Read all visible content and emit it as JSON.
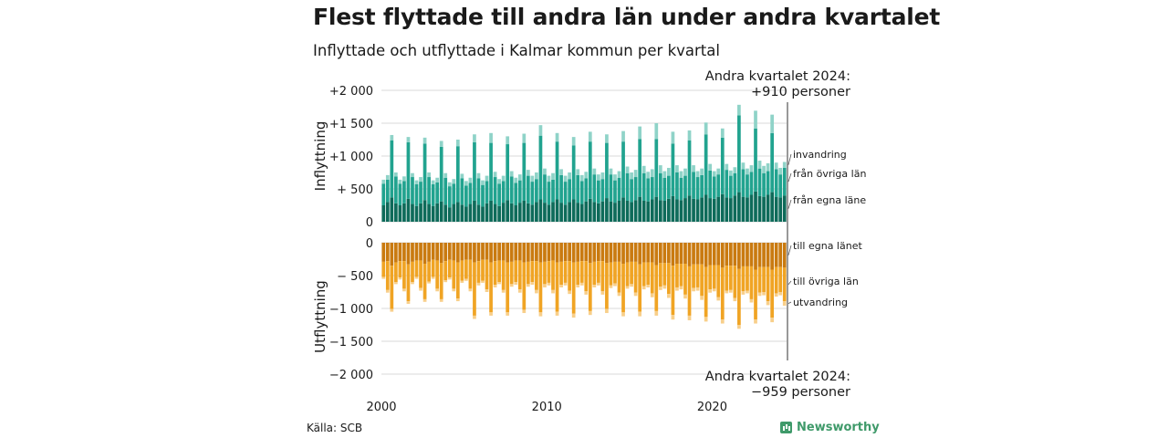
{
  "title": "Flest flyttade till andra län under andra kvartalet",
  "subtitle": "Inflyttade och utflyttade i Kalmar kommun per kvartal",
  "source": "Källa: SCB",
  "brand": "Newsworthy",
  "brand_icon": "bar-chart-icon",
  "chart_data": {
    "type": "bar",
    "stacked": true,
    "x_tick_labels": [
      "2000",
      "2010",
      "2020"
    ],
    "period_start": "2000-Q1",
    "period_end": "2024-Q2",
    "top_panel": {
      "ylabel": "Inflyttning",
      "ylim": [
        0,
        2000
      ],
      "y_ticks": [
        0,
        500,
        1000,
        1500,
        2000
      ],
      "y_tick_labels": [
        "0",
        "+  500",
        "+1 000",
        "+1 500",
        "+2 000"
      ],
      "annotation": [
        "Andra kvartalet 2024:",
        "+910 personer"
      ],
      "components": [
        {
          "name": "från egna läne",
          "color": "#0e6b5a"
        },
        {
          "name": "från övriga län",
          "color": "#21a38f"
        },
        {
          "name": "invandring",
          "color": "#8fd3c8"
        }
      ]
    },
    "bottom_panel": {
      "ylabel": "Utflyttning",
      "ylim": [
        -2000,
        0
      ],
      "y_ticks": [
        0,
        -500,
        -1000,
        -1500,
        -2000
      ],
      "y_tick_labels": [
        "0",
        "−  500",
        "−1 000",
        "−1 500",
        "−2 000"
      ],
      "annotation": [
        "Andra kvartalet 2024:",
        "−959 personer"
      ],
      "components": [
        {
          "name": "till egna länet",
          "color": "#c97a10"
        },
        {
          "name": "till övriga län",
          "color": "#f0a424"
        },
        {
          "name": "utvandring",
          "color": "#f8cf8a"
        }
      ]
    },
    "quarters": [
      {
        "q": "2000-Q1",
        "in": [
          250,
          330,
          60
        ],
        "out": [
          290,
          230,
          30
        ]
      },
      {
        "q": "2000-Q2",
        "in": [
          300,
          340,
          70
        ],
        "out": [
          280,
          440,
          40
        ]
      },
      {
        "q": "2000-Q3",
        "in": [
          370,
          870,
          80
        ],
        "out": [
          350,
          660,
          40
        ]
      },
      {
        "q": "2000-Q4",
        "in": [
          280,
          410,
          60
        ],
        "out": [
          300,
          300,
          30
        ]
      },
      {
        "q": "2001-Q1",
        "in": [
          250,
          330,
          60
        ],
        "out": [
          280,
          250,
          30
        ]
      },
      {
        "q": "2001-Q2",
        "in": [
          280,
          340,
          70
        ],
        "out": [
          280,
          420,
          40
        ]
      },
      {
        "q": "2001-Q3",
        "in": [
          350,
          860,
          80
        ],
        "out": [
          330,
          560,
          40
        ]
      },
      {
        "q": "2001-Q4",
        "in": [
          270,
          410,
          60
        ],
        "out": [
          290,
          310,
          30
        ]
      },
      {
        "q": "2002-Q1",
        "in": [
          240,
          330,
          60
        ],
        "out": [
          270,
          250,
          30
        ]
      },
      {
        "q": "2002-Q2",
        "in": [
          280,
          330,
          70
        ],
        "out": [
          270,
          420,
          40
        ]
      },
      {
        "q": "2002-Q3",
        "in": [
          330,
          860,
          90
        ],
        "out": [
          320,
          540,
          40
        ]
      },
      {
        "q": "2002-Q4",
        "in": [
          270,
          410,
          70
        ],
        "out": [
          290,
          300,
          30
        ]
      },
      {
        "q": "2003-Q1",
        "in": [
          240,
          330,
          60
        ],
        "out": [
          260,
          260,
          30
        ]
      },
      {
        "q": "2003-Q2",
        "in": [
          280,
          320,
          70
        ],
        "out": [
          270,
          430,
          40
        ]
      },
      {
        "q": "2003-Q3",
        "in": [
          310,
          830,
          90
        ],
        "out": [
          310,
          550,
          40
        ]
      },
      {
        "q": "2003-Q4",
        "in": [
          260,
          410,
          70
        ],
        "out": [
          280,
          290,
          30
        ]
      },
      {
        "q": "2004-Q1",
        "in": [
          220,
          320,
          60
        ],
        "out": [
          260,
          270,
          30
        ]
      },
      {
        "q": "2004-Q2",
        "in": [
          270,
          310,
          70
        ],
        "out": [
          270,
          430,
          40
        ]
      },
      {
        "q": "2004-Q3",
        "in": [
          300,
          850,
          100
        ],
        "out": [
          300,
          550,
          40
        ]
      },
      {
        "q": "2004-Q4",
        "in": [
          260,
          400,
          70
        ],
        "out": [
          270,
          310,
          30
        ]
      },
      {
        "q": "2005-Q1",
        "in": [
          230,
          320,
          70
        ],
        "out": [
          260,
          290,
          30
        ]
      },
      {
        "q": "2005-Q2",
        "in": [
          270,
          320,
          80
        ],
        "out": [
          260,
          440,
          40
        ]
      },
      {
        "q": "2005-Q3",
        "in": [
          320,
          890,
          120
        ],
        "out": [
          300,
          810,
          50
        ]
      },
      {
        "q": "2005-Q4",
        "in": [
          260,
          400,
          80
        ],
        "out": [
          280,
          330,
          40
        ]
      },
      {
        "q": "2006-Q1",
        "in": [
          230,
          330,
          70
        ],
        "out": [
          260,
          320,
          30
        ]
      },
      {
        "q": "2006-Q2",
        "in": [
          280,
          340,
          80
        ],
        "out": [
          260,
          450,
          40
        ]
      },
      {
        "q": "2006-Q3",
        "in": [
          320,
          880,
          150
        ],
        "out": [
          300,
          760,
          50
        ]
      },
      {
        "q": "2006-Q4",
        "in": [
          270,
          410,
          80
        ],
        "out": [
          280,
          360,
          40
        ]
      },
      {
        "q": "2007-Q1",
        "in": [
          240,
          340,
          70
        ],
        "out": [
          270,
          330,
          30
        ]
      },
      {
        "q": "2007-Q2",
        "in": [
          290,
          330,
          80
        ],
        "out": [
          270,
          450,
          40
        ]
      },
      {
        "q": "2007-Q3",
        "in": [
          330,
          850,
          120
        ],
        "out": [
          300,
          760,
          50
        ]
      },
      {
        "q": "2007-Q4",
        "in": [
          280,
          410,
          80
        ],
        "out": [
          290,
          340,
          40
        ]
      },
      {
        "q": "2008-Q1",
        "in": [
          250,
          340,
          80
        ],
        "out": [
          270,
          330,
          40
        ]
      },
      {
        "q": "2008-Q2",
        "in": [
          290,
          340,
          90
        ],
        "out": [
          270,
          440,
          50
        ]
      },
      {
        "q": "2008-Q3",
        "in": [
          320,
          880,
          140
        ],
        "out": [
          300,
          720,
          50
        ]
      },
      {
        "q": "2008-Q4",
        "in": [
          280,
          420,
          90
        ],
        "out": [
          290,
          340,
          40
        ]
      },
      {
        "q": "2009-Q1",
        "in": [
          260,
          350,
          90
        ],
        "out": [
          280,
          320,
          40
        ]
      },
      {
        "q": "2009-Q2",
        "in": [
          300,
          350,
          100
        ],
        "out": [
          280,
          440,
          50
        ]
      },
      {
        "q": "2009-Q3",
        "in": [
          340,
          970,
          160
        ],
        "out": [
          300,
          760,
          60
        ]
      },
      {
        "q": "2009-Q4",
        "in": [
          290,
          430,
          90
        ],
        "out": [
          290,
          340,
          50
        ]
      },
      {
        "q": "2010-Q1",
        "in": [
          260,
          350,
          90
        ],
        "out": [
          280,
          330,
          40
        ]
      },
      {
        "q": "2010-Q2",
        "in": [
          300,
          340,
          100
        ],
        "out": [
          270,
          450,
          50
        ]
      },
      {
        "q": "2010-Q3",
        "in": [
          340,
          880,
          130
        ],
        "out": [
          300,
          750,
          60
        ]
      },
      {
        "q": "2010-Q4",
        "in": [
          290,
          420,
          90
        ],
        "out": [
          290,
          350,
          40
        ]
      },
      {
        "q": "2011-Q1",
        "in": [
          260,
          350,
          90
        ],
        "out": [
          280,
          330,
          40
        ]
      },
      {
        "q": "2011-Q2",
        "in": [
          300,
          350,
          100
        ],
        "out": [
          280,
          450,
          50
        ]
      },
      {
        "q": "2011-Q3",
        "in": [
          340,
          820,
          130
        ],
        "out": [
          300,
          780,
          60
        ]
      },
      {
        "q": "2011-Q4",
        "in": [
          290,
          420,
          90
        ],
        "out": [
          290,
          350,
          40
        ]
      },
      {
        "q": "2012-Q1",
        "in": [
          270,
          350,
          90
        ],
        "out": [
          280,
          330,
          40
        ]
      },
      {
        "q": "2012-Q2",
        "in": [
          310,
          350,
          100
        ],
        "out": [
          280,
          460,
          50
        ]
      },
      {
        "q": "2012-Q3",
        "in": [
          350,
          870,
          150
        ],
        "out": [
          310,
          730,
          60
        ]
      },
      {
        "q": "2012-Q4",
        "in": [
          300,
          420,
          90
        ],
        "out": [
          290,
          350,
          40
        ]
      },
      {
        "q": "2013-Q1",
        "in": [
          280,
          350,
          90
        ],
        "out": [
          280,
          330,
          40
        ]
      },
      {
        "q": "2013-Q2",
        "in": [
          310,
          340,
          100
        ],
        "out": [
          280,
          460,
          50
        ]
      },
      {
        "q": "2013-Q3",
        "in": [
          360,
          840,
          130
        ],
        "out": [
          310,
          700,
          60
        ]
      },
      {
        "q": "2013-Q4",
        "in": [
          310,
          410,
          90
        ],
        "out": [
          300,
          350,
          40
        ]
      },
      {
        "q": "2014-Q1",
        "in": [
          290,
          340,
          90
        ],
        "out": [
          290,
          330,
          40
        ]
      },
      {
        "q": "2014-Q2",
        "in": [
          320,
          350,
          100
        ],
        "out": [
          290,
          470,
          50
        ]
      },
      {
        "q": "2014-Q3",
        "in": [
          370,
          850,
          160
        ],
        "out": [
          320,
          740,
          60
        ]
      },
      {
        "q": "2014-Q4",
        "in": [
          320,
          420,
          100
        ],
        "out": [
          300,
          360,
          40
        ]
      },
      {
        "q": "2015-Q1",
        "in": [
          300,
          350,
          100
        ],
        "out": [
          290,
          340,
          40
        ]
      },
      {
        "q": "2015-Q2",
        "in": [
          330,
          350,
          110
        ],
        "out": [
          290,
          470,
          50
        ]
      },
      {
        "q": "2015-Q3",
        "in": [
          380,
          880,
          190
        ],
        "out": [
          330,
          720,
          70
        ]
      },
      {
        "q": "2015-Q4",
        "in": [
          320,
          420,
          110
        ],
        "out": [
          300,
          360,
          50
        ]
      },
      {
        "q": "2016-Q1",
        "in": [
          310,
          350,
          100
        ],
        "out": [
          300,
          340,
          40
        ]
      },
      {
        "q": "2016-Q2",
        "in": [
          340,
          340,
          120
        ],
        "out": [
          300,
          470,
          60
        ]
      },
      {
        "q": "2016-Q3",
        "in": [
          380,
          880,
          240
        ],
        "out": [
          340,
          700,
          70
        ]
      },
      {
        "q": "2016-Q4",
        "in": [
          330,
          410,
          120
        ],
        "out": [
          310,
          360,
          50
        ]
      },
      {
        "q": "2017-Q1",
        "in": [
          320,
          350,
          100
        ],
        "out": [
          310,
          340,
          50
        ]
      },
      {
        "q": "2017-Q2",
        "in": [
          350,
          350,
          120
        ],
        "out": [
          310,
          470,
          60
        ]
      },
      {
        "q": "2017-Q3",
        "in": [
          390,
          800,
          180
        ],
        "out": [
          350,
          750,
          70
        ]
      },
      {
        "q": "2017-Q4",
        "in": [
          340,
          410,
          110
        ],
        "out": [
          320,
          360,
          50
        ]
      },
      {
        "q": "2018-Q1",
        "in": [
          330,
          340,
          100
        ],
        "out": [
          320,
          340,
          50
        ]
      },
      {
        "q": "2018-Q2",
        "in": [
          360,
          340,
          110
        ],
        "out": [
          320,
          470,
          60
        ]
      },
      {
        "q": "2018-Q3",
        "in": [
          400,
          840,
          150
        ],
        "out": [
          360,
          750,
          70
        ]
      },
      {
        "q": "2018-Q4",
        "in": [
          350,
          410,
          100
        ],
        "out": [
          330,
          360,
          50
        ]
      },
      {
        "q": "2019-Q1",
        "in": [
          340,
          340,
          90
        ],
        "out": [
          330,
          350,
          50
        ]
      },
      {
        "q": "2019-Q2",
        "in": [
          370,
          340,
          100
        ],
        "out": [
          330,
          480,
          60
        ]
      },
      {
        "q": "2019-Q3",
        "in": [
          410,
          920,
          180
        ],
        "out": [
          370,
          760,
          70
        ]
      },
      {
        "q": "2019-Q4",
        "in": [
          360,
          420,
          100
        ],
        "out": [
          340,
          370,
          50
        ]
      },
      {
        "q": "2020-Q1",
        "in": [
          350,
          340,
          80
        ],
        "out": [
          340,
          360,
          40
        ]
      },
      {
        "q": "2020-Q2",
        "in": [
          380,
          340,
          90
        ],
        "out": [
          340,
          490,
          50
        ]
      },
      {
        "q": "2020-Q3",
        "in": [
          420,
          860,
          140
        ],
        "out": [
          380,
          790,
          60
        ]
      },
      {
        "q": "2020-Q4",
        "in": [
          370,
          420,
          90
        ],
        "out": [
          350,
          380,
          40
        ]
      },
      {
        "q": "2021-Q1",
        "in": [
          360,
          340,
          80
        ],
        "out": [
          350,
          370,
          40
        ]
      },
      {
        "q": "2021-Q2",
        "in": [
          400,
          340,
          90
        ],
        "out": [
          350,
          490,
          50
        ]
      },
      {
        "q": "2021-Q3",
        "in": [
          450,
          1170,
          160
        ],
        "out": [
          400,
          850,
          60
        ]
      },
      {
        "q": "2021-Q4",
        "in": [
          380,
          420,
          100
        ],
        "out": [
          360,
          380,
          50
        ]
      },
      {
        "q": "2022-Q1",
        "in": [
          370,
          350,
          90
        ],
        "out": [
          360,
          370,
          40
        ]
      },
      {
        "q": "2022-Q2",
        "in": [
          410,
          350,
          100
        ],
        "out": [
          360,
          500,
          50
        ]
      },
      {
        "q": "2022-Q3",
        "in": [
          460,
          960,
          270
        ],
        "out": [
          410,
          760,
          60
        ]
      },
      {
        "q": "2022-Q4",
        "in": [
          390,
          420,
          120
        ],
        "out": [
          370,
          390,
          50
        ]
      },
      {
        "q": "2023-Q1",
        "in": [
          380,
          360,
          110
        ],
        "out": [
          370,
          380,
          50
        ]
      },
      {
        "q": "2023-Q2",
        "in": [
          410,
          360,
          120
        ],
        "out": [
          370,
          520,
          60
        ]
      },
      {
        "q": "2023-Q3",
        "in": [
          450,
          900,
          280
        ],
        "out": [
          410,
          730,
          70
        ]
      },
      {
        "q": "2023-Q4",
        "in": [
          380,
          420,
          100
        ],
        "out": [
          370,
          400,
          50
        ]
      },
      {
        "q": "2024-Q1",
        "in": [
          370,
          350,
          100
        ],
        "out": [
          370,
          380,
          50
        ]
      },
      {
        "q": "2024-Q2",
        "in": [
          400,
          420,
          90
        ],
        "out": [
          380,
          510,
          69
        ]
      }
    ]
  }
}
